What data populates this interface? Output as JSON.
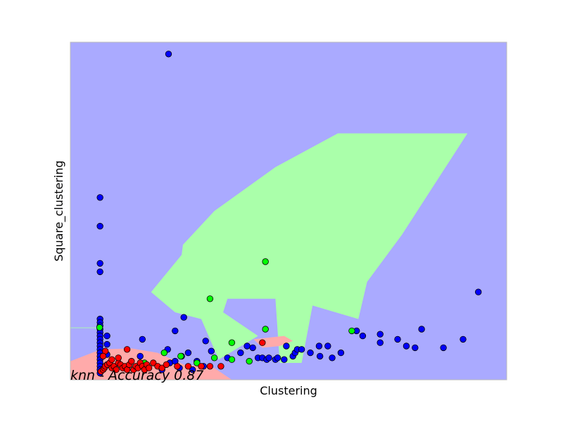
{
  "chart_data": {
    "type": "scatter",
    "xlabel": "Clustering",
    "ylabel": "Square_clustering",
    "xlim": [
      0.0,
      1.0
    ],
    "ylim": [
      0.0,
      1.0
    ],
    "grid": false,
    "legend": "none",
    "annotation": "knn - Accuracy 0.87",
    "colors": {
      "background_region": "#aaaaff",
      "region_class_green": "#aaffaa",
      "region_class_red": "#ffaaaa",
      "point_blue": "#0000ff",
      "point_green": "#00ff00",
      "point_red": "#ff0000",
      "frame": "#bbbbbb"
    },
    "regions": [
      {
        "class": "green",
        "polygon": [
          [
            0.185,
            0.26
          ],
          [
            0.255,
            0.37
          ],
          [
            0.258,
            0.4
          ],
          [
            0.33,
            0.5
          ],
          [
            0.47,
            0.63
          ],
          [
            0.613,
            0.73
          ],
          [
            0.91,
            0.73
          ],
          [
            0.76,
            0.43
          ],
          [
            0.68,
            0.29
          ],
          [
            0.66,
            0.18
          ],
          [
            0.555,
            0.22
          ],
          [
            0.53,
            0.05
          ],
          [
            0.48,
            0.05
          ],
          [
            0.47,
            0.24
          ],
          [
            0.36,
            0.24
          ],
          [
            0.35,
            0.2
          ],
          [
            0.43,
            0.13
          ],
          [
            0.34,
            0.06
          ],
          [
            0.3,
            0.18
          ],
          [
            0.24,
            0.2
          ]
        ]
      },
      {
        "class": "green",
        "polygon": [
          [
            0.0,
            0.155
          ],
          [
            0.075,
            0.155
          ],
          [
            0.075,
            0.153
          ],
          [
            0.0,
            0.153
          ]
        ]
      },
      {
        "class": "red",
        "polygon": [
          [
            0.0,
            0.055
          ],
          [
            0.07,
            0.09
          ],
          [
            0.14,
            0.093
          ],
          [
            0.2,
            0.08
          ],
          [
            0.26,
            0.045
          ],
          [
            0.33,
            0.035
          ],
          [
            0.37,
            0.0
          ],
          [
            0.0,
            0.0
          ]
        ]
      },
      {
        "class": "red",
        "polygon": [
          [
            0.42,
            0.12
          ],
          [
            0.49,
            0.13
          ],
          [
            0.51,
            0.115
          ],
          [
            0.48,
            0.1
          ],
          [
            0.44,
            0.095
          ]
        ]
      }
    ],
    "series": [
      {
        "class": "blue",
        "points": [
          [
            0.225,
            0.965
          ],
          [
            0.068,
            0.54
          ],
          [
            0.068,
            0.455
          ],
          [
            0.068,
            0.345
          ],
          [
            0.068,
            0.32
          ],
          [
            0.068,
            0.18
          ],
          [
            0.068,
            0.17
          ],
          [
            0.068,
            0.16
          ],
          [
            0.068,
            0.15
          ],
          [
            0.068,
            0.14
          ],
          [
            0.068,
            0.13
          ],
          [
            0.068,
            0.12
          ],
          [
            0.068,
            0.11
          ],
          [
            0.068,
            0.1
          ],
          [
            0.068,
            0.09
          ],
          [
            0.068,
            0.08
          ],
          [
            0.068,
            0.07
          ],
          [
            0.068,
            0.06
          ],
          [
            0.068,
            0.05
          ],
          [
            0.068,
            0.04
          ],
          [
            0.068,
            0.03
          ],
          [
            0.068,
            0.02
          ],
          [
            0.084,
            0.13
          ],
          [
            0.084,
            0.105
          ],
          [
            0.084,
            0.075
          ],
          [
            0.084,
            0.045
          ],
          [
            0.16,
            0.07
          ],
          [
            0.165,
            0.12
          ],
          [
            0.223,
            0.09
          ],
          [
            0.228,
            0.05
          ],
          [
            0.24,
            0.055
          ],
          [
            0.24,
            0.145
          ],
          [
            0.26,
            0.185
          ],
          [
            0.255,
            0.07
          ],
          [
            0.27,
            0.08
          ],
          [
            0.29,
            0.055
          ],
          [
            0.305,
            0.04
          ],
          [
            0.31,
            0.115
          ],
          [
            0.323,
            0.085
          ],
          [
            0.36,
            0.065
          ],
          [
            0.39,
            0.08
          ],
          [
            0.405,
            0.1
          ],
          [
            0.418,
            0.095
          ],
          [
            0.43,
            0.065
          ],
          [
            0.44,
            0.065
          ],
          [
            0.45,
            0.06
          ],
          [
            0.455,
            0.065
          ],
          [
            0.47,
            0.06
          ],
          [
            0.475,
            0.065
          ],
          [
            0.49,
            0.06
          ],
          [
            0.495,
            0.1
          ],
          [
            0.51,
            0.07
          ],
          [
            0.515,
            0.08
          ],
          [
            0.52,
            0.09
          ],
          [
            0.53,
            0.09
          ],
          [
            0.55,
            0.08
          ],
          [
            0.57,
            0.1
          ],
          [
            0.572,
            0.07
          ],
          [
            0.59,
            0.1
          ],
          [
            0.6,
            0.065
          ],
          [
            0.62,
            0.08
          ],
          [
            0.656,
            0.145
          ],
          [
            0.67,
            0.13
          ],
          [
            0.71,
            0.135
          ],
          [
            0.71,
            0.11
          ],
          [
            0.75,
            0.12
          ],
          [
            0.77,
            0.1
          ],
          [
            0.79,
            0.095
          ],
          [
            0.805,
            0.15
          ],
          [
            0.855,
            0.095
          ],
          [
            0.9,
            0.12
          ],
          [
            0.935,
            0.26
          ],
          [
            0.25,
            0.035
          ],
          [
            0.28,
            0.03
          ],
          [
            0.21,
            0.03
          ]
        ]
      },
      {
        "class": "green",
        "points": [
          [
            0.067,
            0.155
          ],
          [
            0.08,
            0.04
          ],
          [
            0.17,
            0.05
          ],
          [
            0.215,
            0.08
          ],
          [
            0.253,
            0.07
          ],
          [
            0.29,
            0.05
          ],
          [
            0.33,
            0.065
          ],
          [
            0.37,
            0.06
          ],
          [
            0.41,
            0.055
          ],
          [
            0.37,
            0.11
          ],
          [
            0.32,
            0.24
          ],
          [
            0.447,
            0.35
          ],
          [
            0.447,
            0.15
          ],
          [
            0.645,
            0.145
          ]
        ]
      },
      {
        "class": "red",
        "points": [
          [
            0.07,
            0.025
          ],
          [
            0.075,
            0.03
          ],
          [
            0.078,
            0.035
          ],
          [
            0.08,
            0.04
          ],
          [
            0.085,
            0.045
          ],
          [
            0.09,
            0.05
          ],
          [
            0.095,
            0.035
          ],
          [
            0.1,
            0.04
          ],
          [
            0.105,
            0.03
          ],
          [
            0.11,
            0.05
          ],
          [
            0.115,
            0.045
          ],
          [
            0.12,
            0.035
          ],
          [
            0.125,
            0.04
          ],
          [
            0.13,
            0.03
          ],
          [
            0.135,
            0.045
          ],
          [
            0.14,
            0.055
          ],
          [
            0.145,
            0.03
          ],
          [
            0.15,
            0.04
          ],
          [
            0.155,
            0.035
          ],
          [
            0.16,
            0.05
          ],
          [
            0.165,
            0.04
          ],
          [
            0.17,
            0.03
          ],
          [
            0.175,
            0.045
          ],
          [
            0.18,
            0.035
          ],
          [
            0.19,
            0.05
          ],
          [
            0.2,
            0.04
          ],
          [
            0.21,
            0.035
          ],
          [
            0.22,
            0.045
          ],
          [
            0.13,
            0.09
          ],
          [
            0.08,
            0.085
          ],
          [
            0.245,
            0.04
          ],
          [
            0.27,
            0.04
          ],
          [
            0.3,
            0.04
          ],
          [
            0.32,
            0.04
          ],
          [
            0.345,
            0.04
          ],
          [
            0.44,
            0.11
          ],
          [
            0.075,
            0.07
          ],
          [
            0.095,
            0.06
          ],
          [
            0.11,
            0.065
          ]
        ]
      }
    ]
  }
}
